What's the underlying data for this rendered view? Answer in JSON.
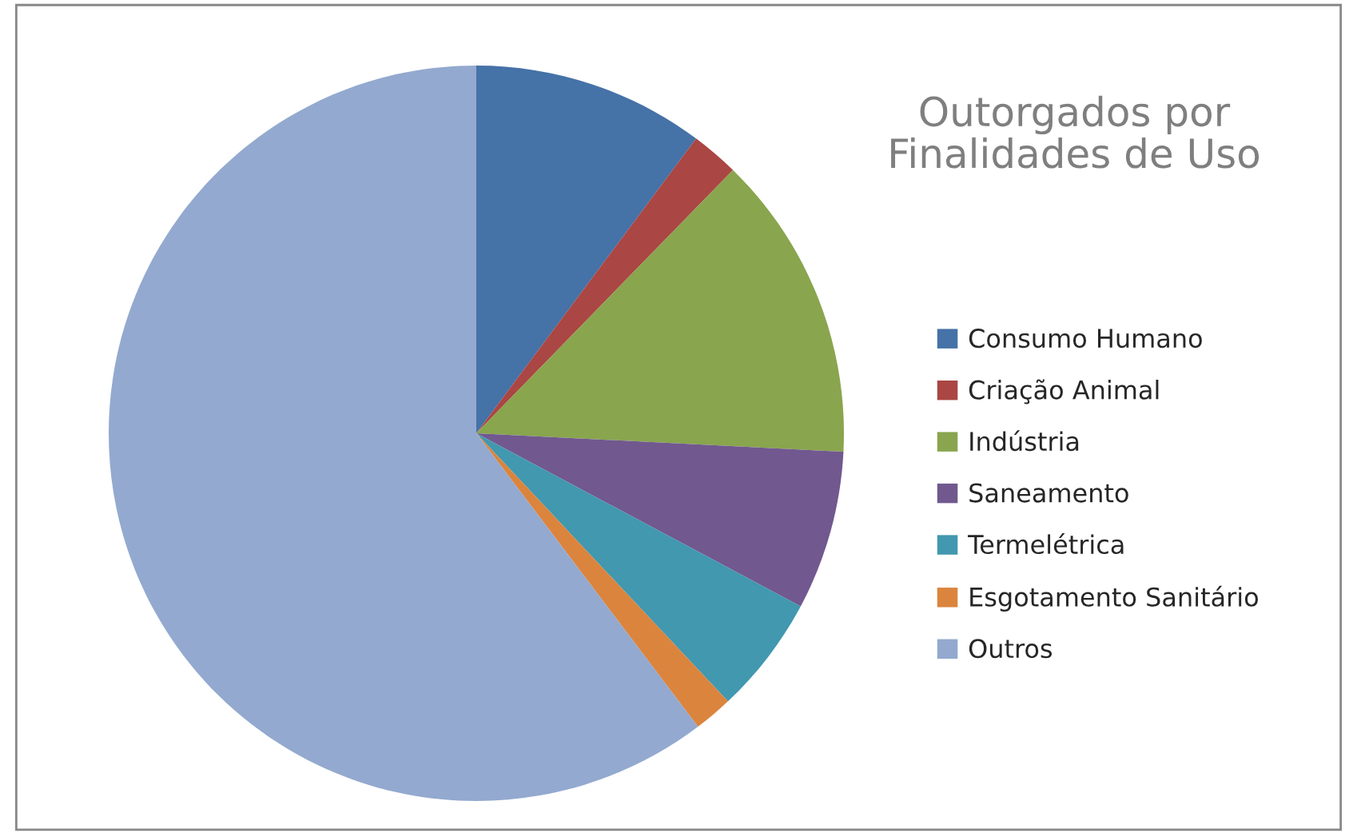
{
  "chart_data": {
    "type": "pie",
    "title": "Outorgados por\nFinalidades de Uso",
    "categories": [
      "Consumo Humano",
      "Criação Animal",
      "Indústria",
      "Saneamento",
      "Termelétrica",
      "Esgotamento Sanitário",
      "Outros"
    ],
    "values": [
      10.2,
      2.1,
      13.5,
      7.0,
      5.2,
      1.7,
      60.3
    ],
    "colors": [
      "#4572a7",
      "#aa4643",
      "#89a54e",
      "#71588f",
      "#4198af",
      "#db843d",
      "#93a9cf"
    ],
    "legend": "right"
  }
}
